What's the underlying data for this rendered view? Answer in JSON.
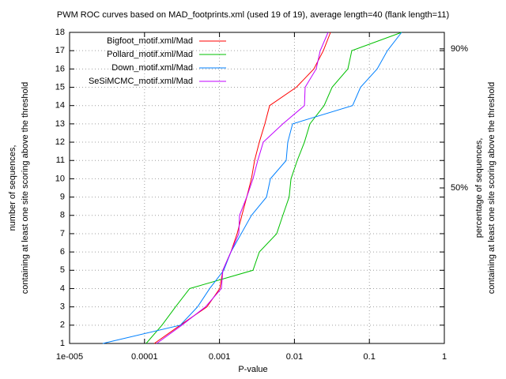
{
  "chart_data": {
    "type": "line",
    "title": "PWM ROC curves based on MAD_footprints.xml (used 19 of 19), average length=40 (flank length=11)",
    "x_label": "P-value",
    "y_label": [
      "number of sequences,",
      "containing at least one site scoring above the threshold"
    ],
    "y2_label": [
      "percentage of sequences,",
      "containing at least one site scoring above the threshold"
    ],
    "xscale": "log",
    "xlim": [
      1e-05,
      1
    ],
    "xticks": [
      {
        "value": 1e-05,
        "label": "1e-005"
      },
      0.0001,
      0.001,
      0.01,
      0.1,
      1
    ],
    "ylim": [
      1,
      18
    ],
    "yticks": [
      1,
      2,
      3,
      4,
      5,
      6,
      7,
      8,
      9,
      10,
      11,
      12,
      13,
      14,
      15,
      16,
      17,
      18
    ],
    "y2lim": [
      5.263,
      94.737
    ],
    "y2ticks": [
      {
        "value": 50,
        "label": "50%"
      },
      {
        "value": 90,
        "label": "90%"
      }
    ],
    "grid": true,
    "legend": "top-left",
    "series": [
      {
        "name": "Bigfoot_motif.xml/Mad",
        "color": "#ff0000",
        "x": [
          0.000135,
          0.0003,
          0.00068,
          0.00101,
          0.00111,
          0.00142,
          0.00172,
          0.00199,
          0.00231,
          0.00267,
          0.00294,
          0.0034,
          0.00403,
          0.00467,
          0.0106,
          0.01816,
          0.0243,
          0.0303
        ],
        "values": [
          1,
          2,
          3,
          4,
          5,
          6,
          7,
          8,
          9,
          10,
          11,
          12,
          13,
          14,
          15,
          16,
          17,
          18
        ]
      },
      {
        "name": "Pollard_motif.xml/Mad",
        "color": "#00c000",
        "x": [
          0.000105,
          0.000171,
          0.000259,
          0.0004,
          0.0028,
          0.0034,
          0.0058,
          0.007,
          0.0085,
          0.009,
          0.0109,
          0.0136,
          0.0161,
          0.0249,
          0.0318,
          0.0516,
          0.0583,
          0.269
        ],
        "values": [
          1,
          2,
          3,
          4,
          5,
          6,
          7,
          8,
          9,
          10,
          11,
          12,
          13,
          14,
          15,
          16,
          17,
          18
        ]
      },
      {
        "name": "Down_motif.xml/Mad",
        "color": "#0080ff",
        "x": [
          2.77e-05,
          0.0003,
          0.00051,
          0.00074,
          0.00114,
          0.00142,
          0.00195,
          0.00267,
          0.00424,
          0.00478,
          0.00776,
          0.00815,
          0.00944,
          0.0597,
          0.0762,
          0.127,
          0.174,
          0.269
        ],
        "values": [
          1,
          2,
          3,
          4,
          5,
          6,
          7,
          8,
          9,
          10,
          11,
          12,
          13,
          14,
          15,
          16,
          17,
          18
        ]
      },
      {
        "name": "SeSiMCMC_motif.xml/Mad",
        "color": "#c000ff",
        "x": [
          0.000145,
          0.000315,
          0.00065,
          0.00106,
          0.00111,
          0.00142,
          0.00181,
          0.00185,
          0.00231,
          0.0028,
          0.00324,
          0.00384,
          0.007,
          0.0136,
          0.0139,
          0.0195,
          0.0221,
          0.0281
        ],
        "values": [
          1,
          2,
          3,
          4,
          5,
          6,
          7,
          8,
          9,
          10,
          11,
          12,
          13,
          14,
          15,
          16,
          17,
          18
        ]
      }
    ]
  }
}
